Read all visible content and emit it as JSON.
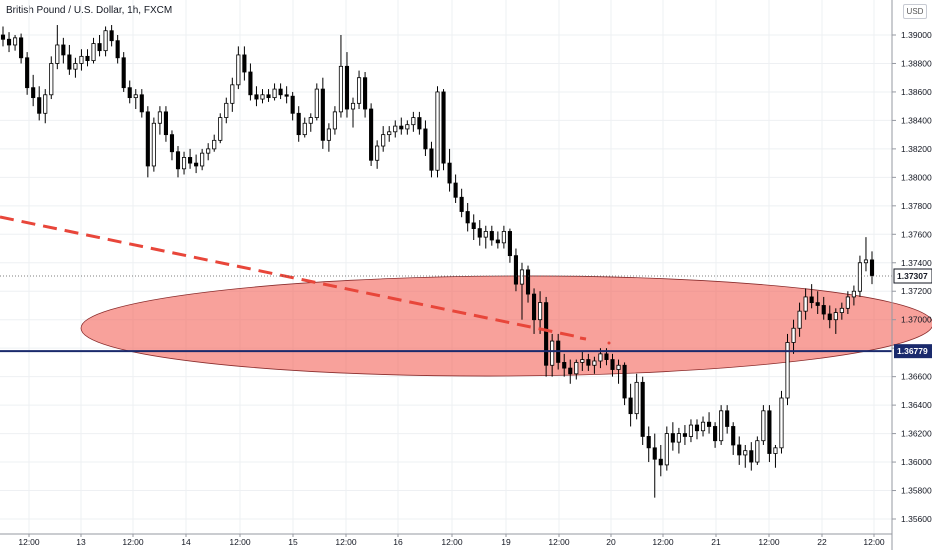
{
  "chart_data": {
    "type": "candlestick",
    "title": "British Pound / U.S. Dollar, 1h, FXCM",
    "currency": "USD",
    "y_ticks": [
      1.39,
      1.388,
      1.386,
      1.384,
      1.382,
      1.38,
      1.378,
      1.376,
      1.374,
      1.372,
      1.37,
      1.368,
      1.366,
      1.364,
      1.362,
      1.36,
      1.358,
      1.356
    ],
    "x_ticks": [
      "12:00",
      "13",
      "12:00",
      "14",
      "12:00",
      "15",
      "12:00",
      "16",
      "12:00",
      "19",
      "12:00",
      "20",
      "12:00",
      "21",
      "12:00",
      "22",
      "12:00"
    ],
    "last_price": "1.37307",
    "horizontal_level": "1.36779",
    "candles": [
      [
        1.39,
        1.3906,
        1.3892,
        1.3897
      ],
      [
        1.3897,
        1.3902,
        1.3888,
        1.3893
      ],
      [
        1.3893,
        1.39,
        1.3889,
        1.3898
      ],
      [
        1.3898,
        1.3901,
        1.388,
        1.3884
      ],
      [
        1.3884,
        1.3888,
        1.3858,
        1.3863
      ],
      [
        1.3863,
        1.3872,
        1.385,
        1.3856
      ],
      [
        1.3856,
        1.3864,
        1.384,
        1.3845
      ],
      [
        1.3845,
        1.3862,
        1.3838,
        1.3858
      ],
      [
        1.3858,
        1.3885,
        1.3855,
        1.388
      ],
      [
        1.388,
        1.3907,
        1.3876,
        1.3893
      ],
      [
        1.3893,
        1.3898,
        1.388,
        1.3886
      ],
      [
        1.3886,
        1.3893,
        1.3872,
        1.3876
      ],
      [
        1.3876,
        1.3884,
        1.387,
        1.388
      ],
      [
        1.388,
        1.389,
        1.3875,
        1.3885
      ],
      [
        1.3885,
        1.389,
        1.3878,
        1.3882
      ],
      [
        1.3882,
        1.3898,
        1.388,
        1.3894
      ],
      [
        1.3894,
        1.39,
        1.3885,
        1.3889
      ],
      [
        1.3889,
        1.3906,
        1.3885,
        1.3903
      ],
      [
        1.3903,
        1.3907,
        1.3892,
        1.3896
      ],
      [
        1.3896,
        1.39,
        1.388,
        1.3884
      ],
      [
        1.3884,
        1.3888,
        1.386,
        1.3863
      ],
      [
        1.3863,
        1.3868,
        1.3852,
        1.3856
      ],
      [
        1.3856,
        1.3862,
        1.3848,
        1.3858
      ],
      [
        1.3858,
        1.3862,
        1.3842,
        1.3846
      ],
      [
        1.3846,
        1.385,
        1.38,
        1.3808
      ],
      [
        1.3808,
        1.3842,
        1.3804,
        1.3838
      ],
      [
        1.3838,
        1.385,
        1.383,
        1.3846
      ],
      [
        1.3846,
        1.385,
        1.3825,
        1.383
      ],
      [
        1.383,
        1.3833,
        1.3812,
        1.3818
      ],
      [
        1.3818,
        1.3822,
        1.38,
        1.3806
      ],
      [
        1.3806,
        1.3818,
        1.3802,
        1.3814
      ],
      [
        1.3814,
        1.382,
        1.3806,
        1.381
      ],
      [
        1.381,
        1.3816,
        1.3803,
        1.3808
      ],
      [
        1.3808,
        1.382,
        1.3805,
        1.3817
      ],
      [
        1.3817,
        1.3824,
        1.3812,
        1.382
      ],
      [
        1.382,
        1.383,
        1.3818,
        1.3826
      ],
      [
        1.3826,
        1.3845,
        1.3824,
        1.3842
      ],
      [
        1.3842,
        1.3856,
        1.3838,
        1.3852
      ],
      [
        1.3852,
        1.387,
        1.3846,
        1.3865
      ],
      [
        1.3865,
        1.3892,
        1.3862,
        1.3886
      ],
      [
        1.3886,
        1.3892,
        1.3868,
        1.3874
      ],
      [
        1.3874,
        1.388,
        1.3854,
        1.3858
      ],
      [
        1.3858,
        1.3864,
        1.385,
        1.3855
      ],
      [
        1.3855,
        1.3862,
        1.3852,
        1.3858
      ],
      [
        1.3858,
        1.3862,
        1.3853,
        1.3856
      ],
      [
        1.3856,
        1.3866,
        1.3854,
        1.3862
      ],
      [
        1.3862,
        1.3866,
        1.3855,
        1.3858
      ],
      [
        1.3858,
        1.3864,
        1.3852,
        1.3857
      ],
      [
        1.3857,
        1.386,
        1.384,
        1.3845
      ],
      [
        1.3845,
        1.385,
        1.3825,
        1.383
      ],
      [
        1.383,
        1.3842,
        1.3828,
        1.3838
      ],
      [
        1.3838,
        1.3845,
        1.3832,
        1.3842
      ],
      [
        1.3842,
        1.3866,
        1.384,
        1.3862
      ],
      [
        1.3862,
        1.387,
        1.382,
        1.3826
      ],
      [
        1.3826,
        1.3838,
        1.3818,
        1.3834
      ],
      [
        1.3834,
        1.385,
        1.383,
        1.3846
      ],
      [
        1.3846,
        1.39,
        1.3842,
        1.3878
      ],
      [
        1.3878,
        1.3888,
        1.3842,
        1.3848
      ],
      [
        1.3848,
        1.3856,
        1.3835,
        1.3852
      ],
      [
        1.3852,
        1.3875,
        1.3848,
        1.387
      ],
      [
        1.387,
        1.3874,
        1.3842,
        1.3848
      ],
      [
        1.3848,
        1.3852,
        1.3808,
        1.3812
      ],
      [
        1.3812,
        1.3826,
        1.3806,
        1.3822
      ],
      [
        1.3822,
        1.3836,
        1.3818,
        1.383
      ],
      [
        1.383,
        1.3836,
        1.3825,
        1.3832
      ],
      [
        1.3832,
        1.384,
        1.3828,
        1.3836
      ],
      [
        1.3836,
        1.3842,
        1.383,
        1.3834
      ],
      [
        1.3834,
        1.384,
        1.383,
        1.3837
      ],
      [
        1.3837,
        1.3846,
        1.3832,
        1.3842
      ],
      [
        1.3842,
        1.3846,
        1.383,
        1.3834
      ],
      [
        1.3834,
        1.384,
        1.3815,
        1.382
      ],
      [
        1.382,
        1.3825,
        1.38,
        1.3805
      ],
      [
        1.3805,
        1.3864,
        1.38,
        1.386
      ],
      [
        1.386,
        1.3862,
        1.3805,
        1.381
      ],
      [
        1.381,
        1.382,
        1.379,
        1.3796
      ],
      [
        1.3796,
        1.3802,
        1.3782,
        1.3786
      ],
      [
        1.3786,
        1.3792,
        1.3772,
        1.3776
      ],
      [
        1.3776,
        1.3782,
        1.3762,
        1.3768
      ],
      [
        1.3768,
        1.3774,
        1.3756,
        1.3764
      ],
      [
        1.3764,
        1.377,
        1.3752,
        1.3758
      ],
      [
        1.3758,
        1.3766,
        1.375,
        1.3762
      ],
      [
        1.3762,
        1.3766,
        1.3752,
        1.3756
      ],
      [
        1.3756,
        1.3762,
        1.375,
        1.3754
      ],
      [
        1.3754,
        1.3766,
        1.375,
        1.3762
      ],
      [
        1.3762,
        1.3764,
        1.374,
        1.3745
      ],
      [
        1.3745,
        1.375,
        1.372,
        1.3725
      ],
      [
        1.3725,
        1.374,
        1.37,
        1.3735
      ],
      [
        1.3735,
        1.3738,
        1.3712,
        1.3718
      ],
      [
        1.3718,
        1.3722,
        1.369,
        1.37
      ],
      [
        1.37,
        1.372,
        1.369,
        1.3712
      ],
      [
        1.3712,
        1.3716,
        1.366,
        1.3668
      ],
      [
        1.3668,
        1.369,
        1.366,
        1.3685
      ],
      [
        1.3685,
        1.369,
        1.3665,
        1.367
      ],
      [
        1.367,
        1.3676,
        1.366,
        1.3666
      ],
      [
        1.3666,
        1.3672,
        1.3655,
        1.3662
      ],
      [
        1.3662,
        1.3672,
        1.3658,
        1.367
      ],
      [
        1.367,
        1.3678,
        1.3664,
        1.3672
      ],
      [
        1.3672,
        1.3676,
        1.3664,
        1.3668
      ],
      [
        1.3668,
        1.3674,
        1.3662,
        1.3671
      ],
      [
        1.3671,
        1.368,
        1.3666,
        1.3676
      ],
      [
        1.3676,
        1.368,
        1.3668,
        1.3672
      ],
      [
        1.3672,
        1.3676,
        1.366,
        1.3665
      ],
      [
        1.3665,
        1.3672,
        1.3655,
        1.3668
      ],
      [
        1.3668,
        1.367,
        1.364,
        1.3645
      ],
      [
        1.3645,
        1.3655,
        1.3625,
        1.3634
      ],
      [
        1.3634,
        1.3662,
        1.363,
        1.3656
      ],
      [
        1.3656,
        1.366,
        1.3612,
        1.3618
      ],
      [
        1.3618,
        1.3625,
        1.36,
        1.361
      ],
      [
        1.361,
        1.362,
        1.3575,
        1.3602
      ],
      [
        1.3602,
        1.3612,
        1.359,
        1.3598
      ],
      [
        1.3598,
        1.3625,
        1.3594,
        1.362
      ],
      [
        1.362,
        1.3628,
        1.3608,
        1.3614
      ],
      [
        1.3614,
        1.3624,
        1.3606,
        1.362
      ],
      [
        1.362,
        1.3626,
        1.3612,
        1.3618
      ],
      [
        1.3618,
        1.363,
        1.3614,
        1.3626
      ],
      [
        1.3626,
        1.363,
        1.3616,
        1.3622
      ],
      [
        1.3622,
        1.3632,
        1.3618,
        1.3628
      ],
      [
        1.3628,
        1.3635,
        1.362,
        1.3625
      ],
      [
        1.3625,
        1.3628,
        1.361,
        1.3615
      ],
      [
        1.3615,
        1.364,
        1.3612,
        1.3636
      ],
      [
        1.3636,
        1.364,
        1.362,
        1.3625
      ],
      [
        1.3625,
        1.3628,
        1.3605,
        1.3612
      ],
      [
        1.3612,
        1.3618,
        1.3598,
        1.3605
      ],
      [
        1.3605,
        1.3612,
        1.3596,
        1.3608
      ],
      [
        1.3608,
        1.3614,
        1.3594,
        1.36
      ],
      [
        1.36,
        1.3618,
        1.3598,
        1.3615
      ],
      [
        1.3615,
        1.364,
        1.3612,
        1.3636
      ],
      [
        1.3636,
        1.364,
        1.36,
        1.3606
      ],
      [
        1.3606,
        1.3612,
        1.3596,
        1.361
      ],
      [
        1.361,
        1.365,
        1.3606,
        1.3645
      ],
      [
        1.3645,
        1.369,
        1.364,
        1.3684
      ],
      [
        1.3684,
        1.37,
        1.3676,
        1.3694
      ],
      [
        1.3694,
        1.3712,
        1.3688,
        1.3706
      ],
      [
        1.3706,
        1.3722,
        1.37,
        1.3716
      ],
      [
        1.3716,
        1.3725,
        1.3708,
        1.3712
      ],
      [
        1.3712,
        1.372,
        1.3704,
        1.371
      ],
      [
        1.371,
        1.3716,
        1.37,
        1.3704
      ],
      [
        1.3704,
        1.371,
        1.3694,
        1.37
      ],
      [
        1.37,
        1.3708,
        1.369,
        1.3705
      ],
      [
        1.3705,
        1.3712,
        1.37,
        1.3708
      ],
      [
        1.3708,
        1.372,
        1.3704,
        1.3716
      ],
      [
        1.3716,
        1.3724,
        1.371,
        1.372
      ],
      [
        1.372,
        1.3745,
        1.3716,
        1.374
      ],
      [
        1.374,
        1.3758,
        1.3734,
        1.3742
      ],
      [
        1.3742,
        1.3748,
        1.3725,
        1.3731
      ]
    ]
  }
}
